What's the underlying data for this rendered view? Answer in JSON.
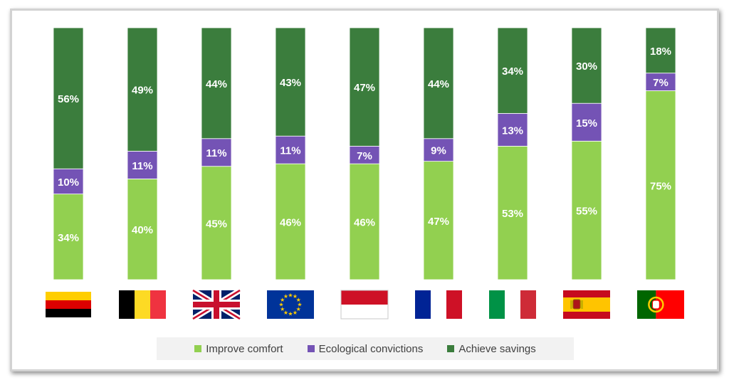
{
  "colors": {
    "improve_comfort": "#92d050",
    "ecological_convictions": "#7453b5",
    "achieve_savings": "#3b7d3d",
    "label_text": "#ffffff",
    "legend_bg": "#f2f2f2"
  },
  "legend": {
    "items": [
      {
        "label": "Improve comfort",
        "color": "#92d050"
      },
      {
        "label": "Ecological convictions",
        "color": "#7453b5"
      },
      {
        "label": "Achieve savings",
        "color": "#3b7d3d"
      }
    ]
  },
  "chart_data": {
    "type": "bar",
    "stacked": true,
    "categories": [
      "germany-flag",
      "belgium-flag",
      "uk-flag",
      "eu-flag",
      "monaco-flag",
      "france-flag",
      "italy-flag",
      "spain-flag",
      "portugal-flag"
    ],
    "series": [
      {
        "name": "Improve comfort",
        "values": [
          34,
          40,
          45,
          46,
          46,
          47,
          53,
          55,
          75
        ],
        "labels": [
          "34%",
          "40%",
          "45%",
          "46%",
          "46%",
          "47%",
          "53%",
          "55%",
          "75%"
        ]
      },
      {
        "name": "Ecological convictions",
        "values": [
          10,
          11,
          11,
          11,
          7,
          9,
          13,
          15,
          7
        ],
        "labels": [
          "10%",
          "11%",
          "11%",
          "11%",
          "7%",
          "9%",
          "13%",
          "15%",
          "7%"
        ]
      },
      {
        "name": "Achieve savings",
        "values": [
          56,
          49,
          44,
          43,
          47,
          44,
          34,
          30,
          18
        ],
        "labels": [
          "56%",
          "49%",
          "44%",
          "43%",
          "47%",
          "44%",
          "34%",
          "30%",
          "18%"
        ]
      }
    ],
    "ylim": [
      0,
      100
    ],
    "grid": false,
    "legend_position": "bottom",
    "title": "",
    "xlabel": "",
    "ylabel": ""
  }
}
